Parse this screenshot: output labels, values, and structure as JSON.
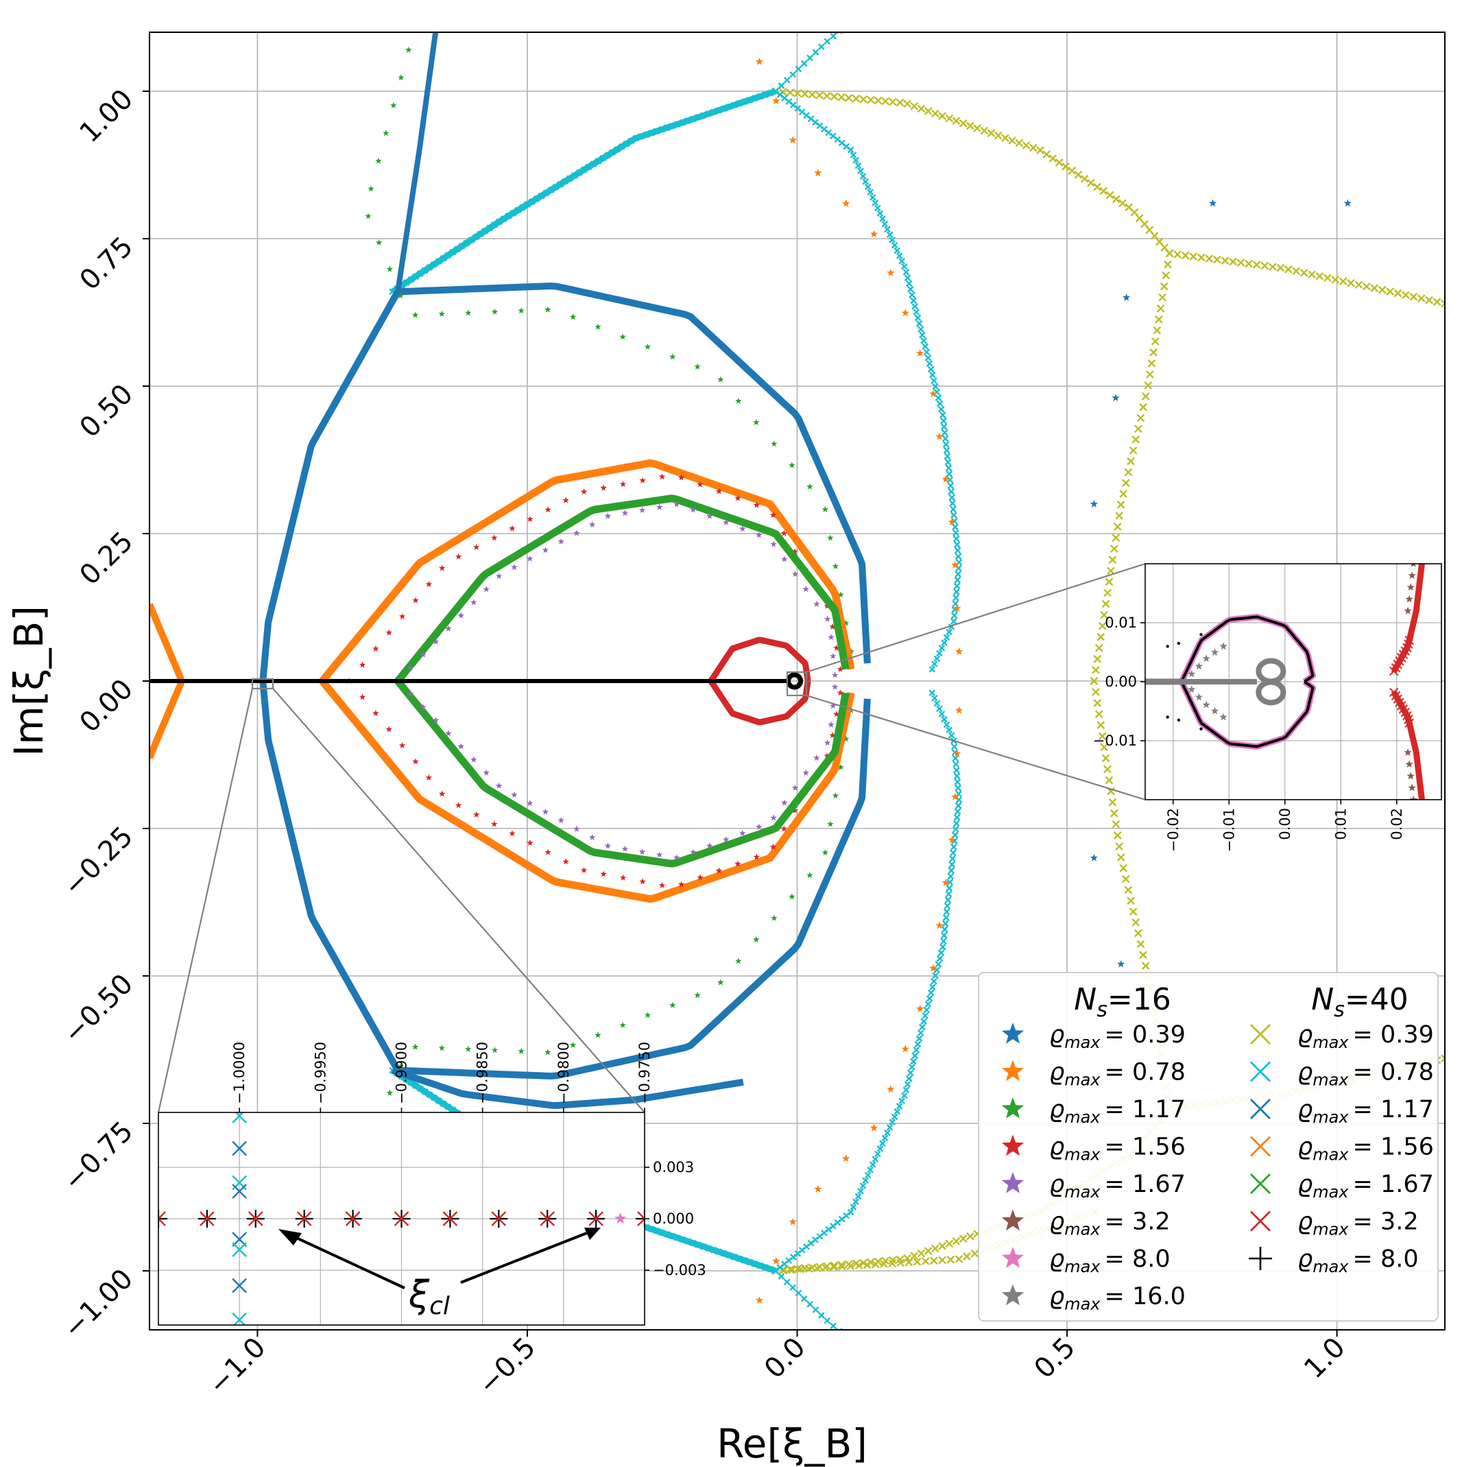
{
  "chart_data": {
    "type": "scatter",
    "xlabel": "Re[ξ_B]",
    "ylabel": "Im[ξ_B]",
    "xlim": [
      -1.2,
      1.2
    ],
    "ylim": [
      -1.1,
      1.1
    ],
    "grid": true,
    "x_ticks": [
      "−1.0",
      "−0.5",
      "0.0",
      "0.5",
      "1.0"
    ],
    "x_tick_values": [
      -1.0,
      -0.5,
      0.0,
      0.5,
      1.0
    ],
    "y_ticks": [
      "−1.00",
      "−0.75",
      "−0.50",
      "−0.25",
      "0.00",
      "0.25",
      "0.50",
      "0.75",
      "1.00"
    ],
    "y_tick_values": [
      -1.0,
      -0.75,
      -0.5,
      -0.25,
      0.0,
      0.25,
      0.5,
      0.75,
      1.0
    ],
    "legend": {
      "placement": "lower-right",
      "groups": [
        {
          "heading_var": "N",
          "heading_sub": "s",
          "heading_val": "=16",
          "marker": "star",
          "entries": [
            {
              "var": "ϱ",
              "sub": "max",
              "value": "= 0.39",
              "color": "#1f77b4"
            },
            {
              "var": "ϱ",
              "sub": "max",
              "value": "= 0.78",
              "color": "#ff7f0e"
            },
            {
              "var": "ϱ",
              "sub": "max",
              "value": "= 1.17",
              "color": "#2ca02c"
            },
            {
              "var": "ϱ",
              "sub": "max",
              "value": "= 1.56",
              "color": "#d62728"
            },
            {
              "var": "ϱ",
              "sub": "max",
              "value": "= 1.67",
              "color": "#9467bd"
            },
            {
              "var": "ϱ",
              "sub": "max",
              "value": "= 3.2",
              "color": "#8c564b"
            },
            {
              "var": "ϱ",
              "sub": "max",
              "value": "= 8.0",
              "color": "#e377c2"
            },
            {
              "var": "ϱ",
              "sub": "max",
              "value": "= 16.0",
              "color": "#7f7f7f"
            }
          ]
        },
        {
          "heading_var": "N",
          "heading_sub": "s",
          "heading_val": "=40",
          "marker": "x",
          "entries": [
            {
              "var": "ϱ",
              "sub": "max",
              "value": "= 0.39",
              "color": "#bcbd22",
              "marker": "x"
            },
            {
              "var": "ϱ",
              "sub": "max",
              "value": "= 0.78",
              "color": "#17becf",
              "marker": "x"
            },
            {
              "var": "ϱ",
              "sub": "max",
              "value": "= 1.17",
              "color": "#1f77b4",
              "marker": "x"
            },
            {
              "var": "ϱ",
              "sub": "max",
              "value": "= 1.56",
              "color": "#ff7f0e",
              "marker": "x"
            },
            {
              "var": "ϱ",
              "sub": "max",
              "value": "= 1.67",
              "color": "#2ca02c",
              "marker": "x"
            },
            {
              "var": "ϱ",
              "sub": "max",
              "value": "= 3.2",
              "color": "#d62728",
              "marker": "x"
            },
            {
              "var": "ϱ",
              "sub": "max",
              "value": "= 8.0",
              "color": "#000000",
              "marker": "plus"
            }
          ]
        }
      ]
    },
    "series": [
      {
        "name": "N_s=40 ϱmax=0.39",
        "color": "#bcbd22",
        "marker": "x",
        "curve": "circle",
        "center": [
          0.0,
          0.0
        ],
        "radius": 1.0,
        "note": "arcs from (-0.04,±1.0) through (0.68,±0.72) and branch to right"
      },
      {
        "name": "N_s=40 ϱmax=0.78",
        "color": "#17becf",
        "marker": "x",
        "curve": "arcs",
        "points_of_interest": [
          [
            -0.04,
            1.0
          ],
          [
            -0.68,
            0.67
          ],
          [
            0.29,
            0.1
          ],
          [
            0.29,
            -0.1
          ],
          [
            -0.04,
            -1.0
          ]
        ]
      },
      {
        "name": "N_s=40 ϱmax=1.17",
        "color": "#1f77b4",
        "marker": "x",
        "curve": "closed-loop",
        "points_of_interest": [
          [
            -0.74,
            0.66
          ],
          [
            -0.98,
            0.0
          ],
          [
            0.13,
            0.02
          ],
          [
            -0.31,
            -0.67
          ]
        ]
      },
      {
        "name": "N_s=40 ϱmax=1.56",
        "color": "#ff7f0e",
        "marker": "x",
        "curve": "cardioid",
        "cusp": [
          -0.88,
          0.0
        ],
        "right": [
          0.1,
          0.0
        ],
        "top": [
          -0.27,
          0.37
        ]
      },
      {
        "name": "N_s=40 ϱmax=1.67",
        "color": "#2ca02c",
        "marker": "x",
        "curve": "cardioid",
        "cusp": [
          -0.74,
          0.0
        ],
        "right": [
          0.09,
          0.0
        ],
        "top": [
          -0.23,
          0.31
        ]
      },
      {
        "name": "N_s=40 ϱmax=3.2",
        "color": "#d62728",
        "marker": "x",
        "curve": "loop",
        "cusp": [
          -0.16,
          0.0
        ],
        "right": [
          0.02,
          0.0
        ],
        "top": [
          -0.08,
          0.07
        ]
      },
      {
        "name": "N_s=40 ϱmax=8.0",
        "color": "#000000",
        "marker": "plus",
        "curve": "real-axis-line",
        "from": -1.2,
        "to": -0.02
      }
    ],
    "annotations": [
      {
        "text": "ξ",
        "sub": "cl"
      }
    ],
    "inset_right": {
      "x_ticks": [
        "−0.02",
        "−0.01",
        "0.00",
        "0.01",
        "0.02"
      ],
      "x_tick_values": [
        -0.02,
        -0.01,
        0.0,
        0.01,
        0.02
      ],
      "y_ticks": [
        "0.01",
        "0.00",
        "−0.01"
      ],
      "y_tick_values": [
        0.01,
        0.0,
        -0.01
      ],
      "xlim": [
        -0.025,
        0.028
      ],
      "ylim": [
        -0.02,
        0.02
      ]
    },
    "inset_left": {
      "x_ticks": [
        "−1.0000",
        "−0.9950",
        "−0.9900",
        "−0.9850",
        "−0.9800",
        "−0.9750"
      ],
      "x_tick_values": [
        -1.0,
        -0.995,
        -0.99,
        -0.985,
        -0.98,
        -0.975
      ],
      "y_ticks": [
        "0.003",
        "0.000",
        "−0.003"
      ],
      "y_tick_values": [
        0.003,
        0.0,
        -0.003
      ],
      "xlim": [
        -1.005,
        -0.975
      ],
      "ylim": [
        -0.0062,
        0.0062
      ],
      "xi_cl_points": [
        -1.005,
        -1.002,
        -0.999,
        -0.996,
        -0.993,
        -0.99,
        -0.987,
        -0.984,
        -0.981,
        -0.978,
        -0.975
      ]
    }
  }
}
